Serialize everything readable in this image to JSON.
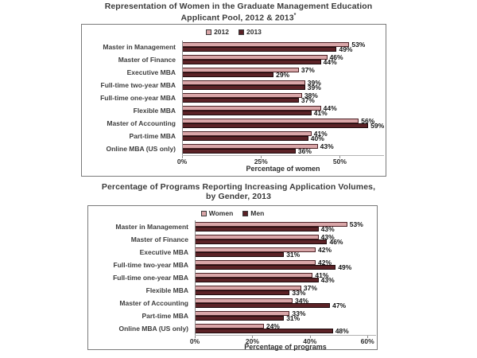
{
  "page": {
    "background": "#ffffff"
  },
  "colors": {
    "bar_light": "#d9a6a8",
    "bar_dark": "#5b2226",
    "text": "#3b3b3b"
  },
  "chart_data": [
    {
      "type": "bar",
      "orientation": "horizontal",
      "title": "Representation of Women in the Graduate Management Education Applicant Pool, 2012 & 2013*",
      "title_lines": [
        "Representation of Women in the Graduate Management Education",
        "Applicant Pool, 2012 & 2013"
      ],
      "title_note_marker": "*",
      "categories": [
        "Master in Management",
        "Master of Finance",
        "Executive MBA",
        "Full-time two-year MBA",
        "Full-time one-year MBA",
        "Flexible MBA",
        "Master of Accounting",
        "Part-time MBA",
        "Online MBA (US only)"
      ],
      "series": [
        {
          "name": "2012",
          "color": "#d9a6a8",
          "values": [
            53,
            46,
            37,
            39,
            38,
            44,
            56,
            41,
            43
          ]
        },
        {
          "name": "2013",
          "color": "#5b2226",
          "values": [
            49,
            44,
            29,
            39,
            37,
            41,
            59,
            40,
            36
          ]
        }
      ],
      "value_suffix": "%",
      "xlabel": "Percentage of women",
      "xlim": [
        0,
        64
      ],
      "xticks": [
        0,
        25,
        50
      ],
      "xtick_labels": [
        "0%",
        "25%",
        "50%"
      ],
      "legend_position": "top",
      "grid": false
    },
    {
      "type": "bar",
      "orientation": "horizontal",
      "title": "Percentage of Programs Reporting Increasing Application Volumes, by Gender, 2013",
      "title_lines": [
        "Percentage of Programs Reporting Increasing Application Volumes,",
        "by Gender, 2013"
      ],
      "categories": [
        "Master in Management",
        "Master of Finance",
        "Executive MBA",
        "Full-time two-year MBA",
        "Full-time one-year MBA",
        "Flexible MBA",
        "Master of Accounting",
        "Part-time MBA",
        "Online MBA (US only)"
      ],
      "series": [
        {
          "name": "Women",
          "color": "#d9a6a8",
          "values": [
            53,
            43,
            42,
            42,
            41,
            37,
            34,
            33,
            24
          ]
        },
        {
          "name": "Men",
          "color": "#5b2226",
          "values": [
            43,
            46,
            31,
            49,
            43,
            33,
            47,
            31,
            48
          ]
        }
      ],
      "value_suffix": "%",
      "xlabel": "Percentage of programs",
      "xlim": [
        0,
        63
      ],
      "xticks": [
        0,
        20,
        40,
        60
      ],
      "xtick_labels": [
        "0%",
        "20%",
        "40%",
        "60%"
      ],
      "legend_position": "top",
      "grid": false
    }
  ]
}
